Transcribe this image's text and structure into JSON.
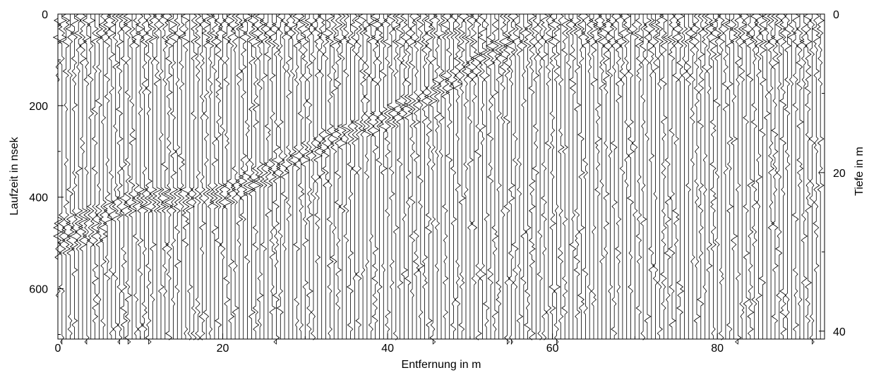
{
  "chart_data": {
    "type": "heatmap",
    "subtype": "radargram (wiggle traces)",
    "title": "",
    "xlabel": "Entfernung in m",
    "ylabel": "Laufzeit in nsek",
    "y2label": "Tiefe in m",
    "xlim": [
      0,
      93
    ],
    "ylim": [
      0,
      710
    ],
    "y2lim": [
      0,
      41
    ],
    "x_ticks": [
      0,
      20,
      40,
      60,
      80
    ],
    "y_ticks": [
      0,
      200,
      400,
      600
    ],
    "y2_ticks": [
      0,
      20,
      40
    ],
    "x_minor_ticks": [
      10,
      30,
      50,
      70,
      90
    ],
    "y_minor_ticks": [
      100,
      300,
      500,
      700
    ],
    "y2_minor_ticks": [
      10,
      30
    ],
    "grid": false,
    "trace_spacing_m": 0.5,
    "trace_color": "#000000",
    "reflector": {
      "x": [
        0,
        5,
        10,
        15,
        20,
        25,
        30,
        35,
        40,
        45,
        50,
        55
      ],
      "y": [
        460,
        430,
        400,
        395,
        390,
        345,
        295,
        255,
        220,
        170,
        110,
        55
      ]
    },
    "noise_zone_top_ns": 60,
    "background_color": "#ffffff"
  }
}
